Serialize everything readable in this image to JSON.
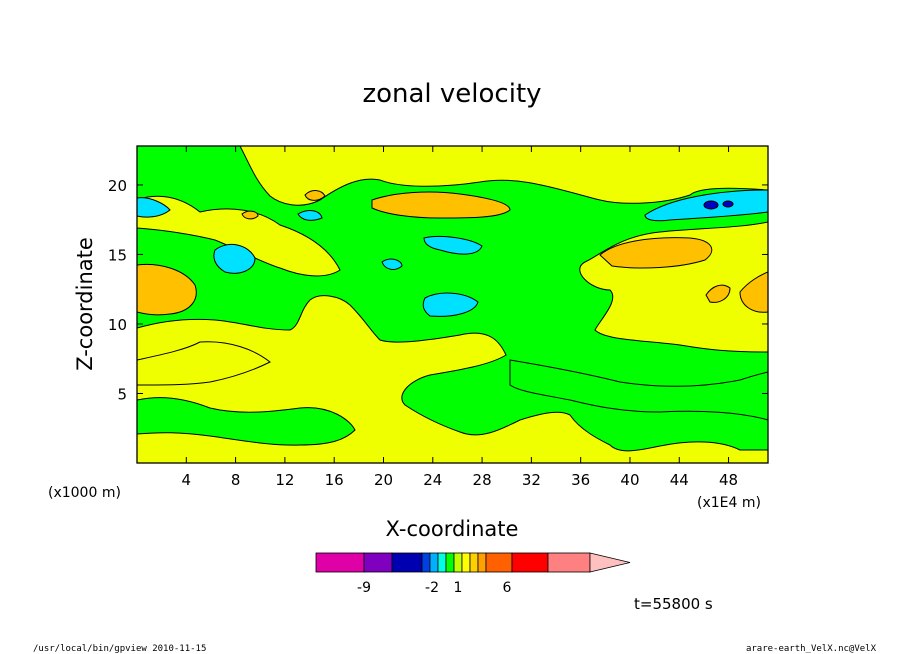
{
  "chart_data": {
    "type": "heatmap",
    "title": "zonal velocity",
    "xlabel": "X-coordinate",
    "ylabel": "Z-coordinate",
    "x_unit": "(x1E4 m)",
    "y_unit": "(x1000 m)",
    "xlim": [
      0,
      51.2
    ],
    "ylim": [
      0,
      22.8
    ],
    "x_ticks": [
      4,
      8,
      12,
      16,
      20,
      24,
      28,
      32,
      36,
      40,
      44,
      48
    ],
    "y_ticks": [
      5,
      10,
      15,
      20
    ],
    "time_label": "t=55800 s",
    "colorbar": {
      "labels": [
        "-9",
        "-2",
        "1",
        "6"
      ],
      "colors": [
        "#e000a8",
        "#8000c0",
        "#0000b0",
        "#0040e0",
        "#00b0ff",
        "#00ffe0",
        "#00ff00",
        "#c0ff00",
        "#ffff00",
        "#ffd000",
        "#ffa000",
        "#ff6000",
        "#ff0000",
        "#ff8080",
        "#ffc0c0"
      ],
      "extend": "max"
    },
    "legend": [
      {
        "color": "#00ff00",
        "meaning": "-1 to 0"
      },
      {
        "color": "#f0ff00",
        "meaning": "0 to 1"
      },
      {
        "color": "#ffc000",
        "meaning": "1 to 2"
      },
      {
        "color": "#00e0ff",
        "meaning": "-2 to -1"
      },
      {
        "color": "#0000c0",
        "meaning": "< -2"
      }
    ],
    "regions": [
      {
        "level": "yellow",
        "approx": "lower band z 0-8, broad upper band z 17-22 and mid-right"
      },
      {
        "level": "green",
        "approx": "central band z 8-17 and diagonal bands"
      },
      {
        "level": "orange",
        "approx": "small patches near x 3, 24, 42, 50 at z 12-19"
      },
      {
        "level": "cyan",
        "approx": "patches near x 8, 26, 48 at z 11-19"
      },
      {
        "level": "blue",
        "approx": "core near x 47, z 18.5"
      }
    ]
  },
  "footer": {
    "left": "/usr/local/bin/gpview   2010-11-15",
    "right": "arare-earth_VelX.nc@VelX"
  }
}
